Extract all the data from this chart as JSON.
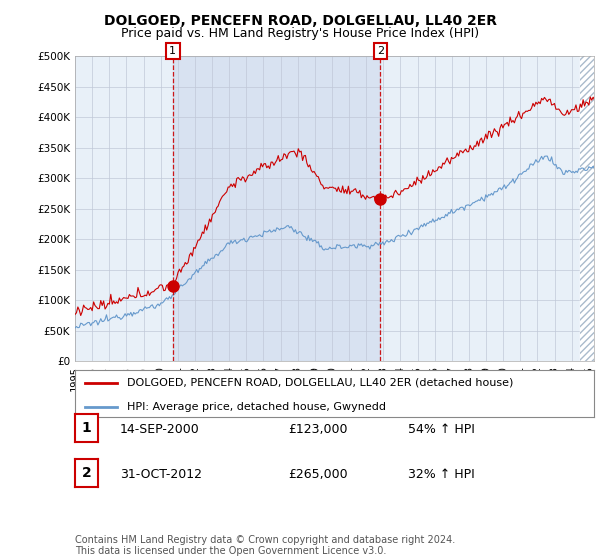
{
  "title": "DOLGOED, PENCEFN ROAD, DOLGELLAU, LL40 2ER",
  "subtitle": "Price paid vs. HM Land Registry's House Price Index (HPI)",
  "ylim": [
    0,
    500000
  ],
  "yticks": [
    0,
    50000,
    100000,
    150000,
    200000,
    250000,
    300000,
    350000,
    400000,
    450000,
    500000
  ],
  "xlim_start": 1995.0,
  "xlim_end": 2025.3,
  "red_line_color": "#cc0000",
  "blue_line_color": "#6699cc",
  "vline_color": "#cc0000",
  "sale1_x": 2000.71,
  "sale1_y": 123000,
  "sale1_label": "1",
  "sale2_x": 2012.83,
  "sale2_y": 265000,
  "sale2_label": "2",
  "legend_red": "DOLGOED, PENCEFN ROAD, DOLGELLAU, LL40 2ER (detached house)",
  "legend_blue": "HPI: Average price, detached house, Gwynedd",
  "table_row1": [
    "1",
    "14-SEP-2000",
    "£123,000",
    "54% ↑ HPI"
  ],
  "table_row2": [
    "2",
    "31-OCT-2012",
    "£265,000",
    "32% ↑ HPI"
  ],
  "footer": "Contains HM Land Registry data © Crown copyright and database right 2024.\nThis data is licensed under the Open Government Licence v3.0.",
  "background_color": "#ffffff",
  "plot_bg_color": "#e8f0f8",
  "grid_color": "#c0c8d8",
  "title_fontsize": 10,
  "subtitle_fontsize": 9,
  "tick_fontsize": 7.5
}
